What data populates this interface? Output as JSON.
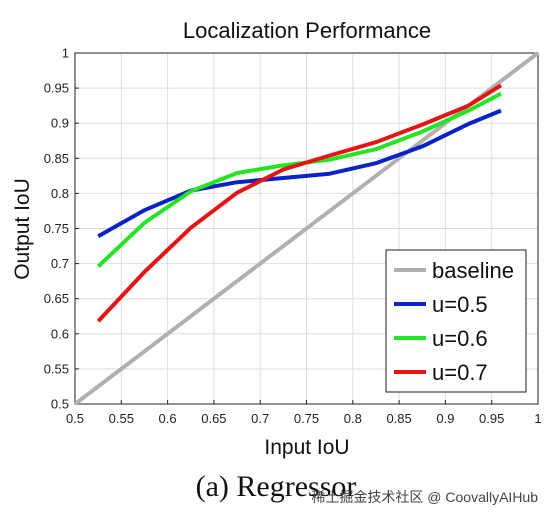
{
  "chart_data": {
    "type": "line",
    "title": "Localization Performance",
    "xlabel": "Input IoU",
    "ylabel": "Output IoU",
    "xlim": [
      0.5,
      1.0
    ],
    "ylim": [
      0.5,
      1.0
    ],
    "xticks": [
      "0.5",
      "0.55",
      "0.6",
      "0.65",
      "0.7",
      "0.75",
      "0.8",
      "0.85",
      "0.9",
      "0.95",
      "1"
    ],
    "yticks": [
      "0.5",
      "0.55",
      "0.6",
      "0.65",
      "0.7",
      "0.75",
      "0.8",
      "0.85",
      "0.9",
      "0.95",
      "1"
    ],
    "grid": true,
    "legend_position": "lower-right",
    "series": [
      {
        "name": "baseline",
        "color": "#b0b0b0",
        "x": [
          0.5,
          1.0
        ],
        "y": [
          0.5,
          1.0
        ]
      },
      {
        "name": "u=0.5",
        "color": "#0a23c8",
        "x": [
          0.525,
          0.575,
          0.625,
          0.675,
          0.725,
          0.775,
          0.825,
          0.875,
          0.925,
          0.96
        ],
        "y": [
          0.739,
          0.776,
          0.804,
          0.816,
          0.822,
          0.828,
          0.843,
          0.867,
          0.899,
          0.918
        ]
      },
      {
        "name": "u=0.6",
        "color": "#22e622",
        "x": [
          0.525,
          0.575,
          0.625,
          0.675,
          0.725,
          0.775,
          0.825,
          0.875,
          0.925,
          0.96
        ],
        "y": [
          0.696,
          0.758,
          0.803,
          0.829,
          0.84,
          0.848,
          0.863,
          0.888,
          0.918,
          0.942
        ]
      },
      {
        "name": "u=0.7",
        "color": "#e61414",
        "x": [
          0.525,
          0.575,
          0.625,
          0.675,
          0.725,
          0.775,
          0.825,
          0.875,
          0.925,
          0.96
        ],
        "y": [
          0.618,
          0.688,
          0.751,
          0.801,
          0.834,
          0.854,
          0.873,
          0.898,
          0.925,
          0.954
        ]
      }
    ]
  },
  "caption": "(a) Regressor",
  "watermark": "稀土掘金技术社区 @ CoovallyAIHub"
}
